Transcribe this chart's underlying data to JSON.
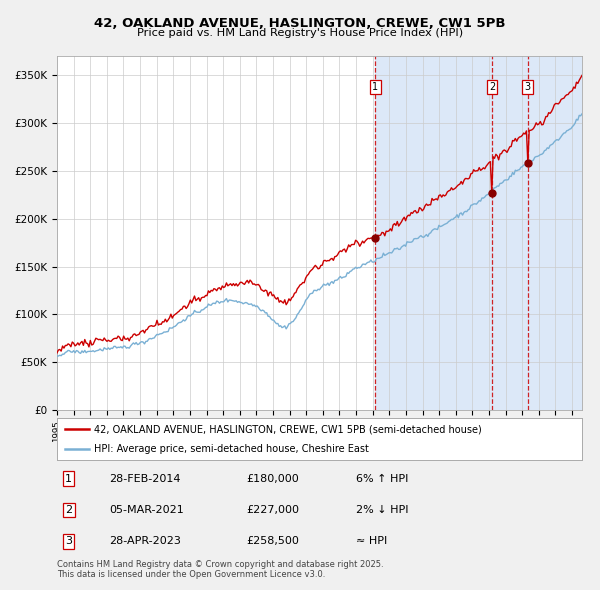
{
  "title": "42, OAKLAND AVENUE, HASLINGTON, CREWE, CW1 5PB",
  "subtitle": "Price paid vs. HM Land Registry's House Price Index (HPI)",
  "ylabel_ticks": [
    "£0",
    "£50K",
    "£100K",
    "£150K",
    "£200K",
    "£250K",
    "£300K",
    "£350K"
  ],
  "ytick_vals": [
    0,
    50000,
    100000,
    150000,
    200000,
    250000,
    300000,
    350000
  ],
  "ylim": [
    0,
    370000
  ],
  "xlim_start": 1995.0,
  "xlim_end": 2026.6,
  "bg_color": "#f0f0f0",
  "plot_bg": "#ffffff",
  "red_line_color": "#cc0000",
  "blue_line_color": "#7ab0d4",
  "fill_color": "#dce8f8",
  "sale_dates": [
    2014.16,
    2021.18,
    2023.33
  ],
  "sale_prices": [
    180000,
    227000,
    258500
  ],
  "sale_labels": [
    "1",
    "2",
    "3"
  ],
  "legend_items": [
    "42, OAKLAND AVENUE, HASLINGTON, CREWE, CW1 5PB (semi-detached house)",
    "HPI: Average price, semi-detached house, Cheshire East"
  ],
  "table_data": [
    [
      "1",
      "28-FEB-2014",
      "£180,000",
      "6% ↑ HPI"
    ],
    [
      "2",
      "05-MAR-2021",
      "£227,000",
      "2% ↓ HPI"
    ],
    [
      "3",
      "28-APR-2023",
      "£258,500",
      "≈ HPI"
    ]
  ],
  "footer": "Contains HM Land Registry data © Crown copyright and database right 2025.\nThis data is licensed under the Open Government Licence v3.0."
}
